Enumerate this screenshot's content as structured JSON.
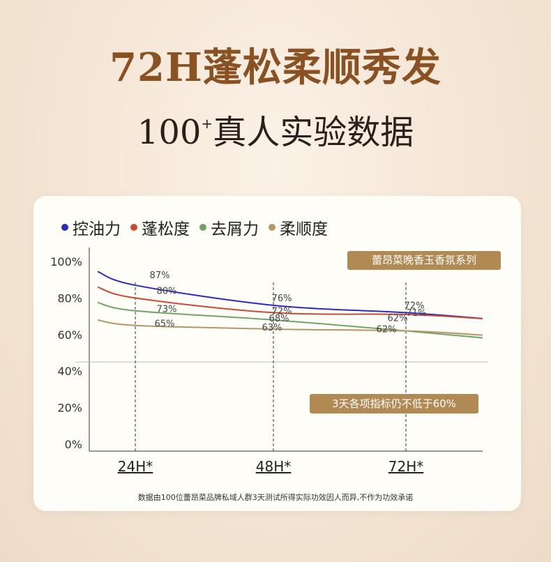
{
  "header": {
    "title": "72H蓬松柔顺秀发",
    "subtitle_prefix": "100",
    "subtitle_sup": "+",
    "subtitle_rest": "真人实验数据"
  },
  "badges": {
    "series_name": "蕾昂菜晚香玉香氛系列",
    "note": "3天各项指标仍不低于60%"
  },
  "footnote": "数据由100位蕾昂菜品牌私域人群3天测试所得实际功效因人而异,不作为功效承诺",
  "colors": {
    "blue": "#2b2bc0",
    "red": "#cc4a32",
    "green": "#6fa467",
    "tan": "#b89567",
    "brand": "#b08a52"
  },
  "chart_data": {
    "type": "line",
    "categories": [
      "24H*",
      "48H*",
      "72H*"
    ],
    "ylim": [
      0,
      100
    ],
    "yticks": [
      "0%",
      "20%",
      "40%",
      "60%",
      "80%",
      "100%"
    ],
    "grid": false,
    "legend_position": "top-left",
    "series": [
      {
        "name": "控油力",
        "color": "#2b2bc0",
        "values": [
          87,
          76,
          72
        ],
        "labels": [
          "87%",
          "76%",
          "72%"
        ]
      },
      {
        "name": "蓬松度",
        "color": "#cc4a32",
        "values": [
          80,
          72,
          71
        ],
        "labels": [
          "80%",
          "72%",
          "71%"
        ]
      },
      {
        "name": "去屑力",
        "color": "#6fa467",
        "values": [
          73,
          68,
          62
        ],
        "labels": [
          "73%",
          "68%",
          "62%"
        ]
      },
      {
        "name": "柔顺度",
        "color": "#b89567",
        "values": [
          65,
          63,
          62
        ],
        "labels": [
          "65%",
          "63%",
          "62%"
        ]
      }
    ]
  }
}
